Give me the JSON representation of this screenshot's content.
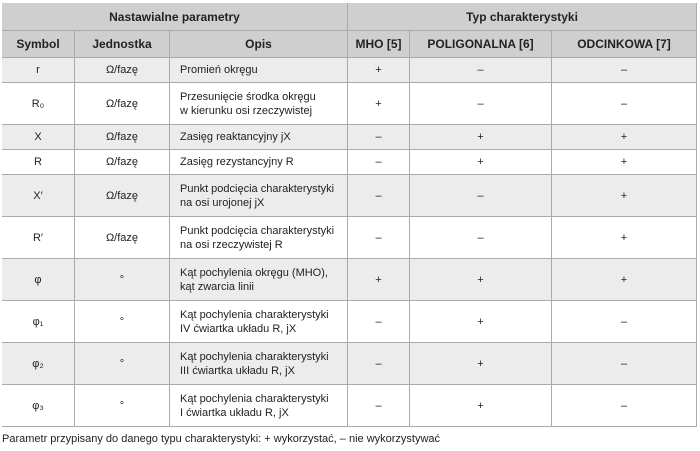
{
  "table": {
    "group_headers": [
      "Nastawialne parametry",
      "Typ charakterystyki"
    ],
    "headers": [
      "Symbol",
      "Jednostka",
      "Opis",
      "MHO [5]",
      "POLIGONALNA [6]",
      "ODCINKOWA [7]"
    ],
    "rows": [
      {
        "symbol": "r",
        "unit": "Ω/fazę",
        "description": [
          "Promień okręgu"
        ],
        "mho": "+",
        "poligonalna": "–",
        "odcinkowa": "–"
      },
      {
        "symbol": "R₀",
        "unit": "Ω/fazę",
        "description": [
          "Przesunięcie środka okręgu",
          "w kierunku osi rzeczywistej"
        ],
        "mho": "+",
        "poligonalna": "–",
        "odcinkowa": "–"
      },
      {
        "symbol": "X",
        "unit": "Ω/fazę",
        "description": [
          "Zasięg reaktancyjny jX"
        ],
        "mho": "–",
        "poligonalna": "+",
        "odcinkowa": "+"
      },
      {
        "symbol": "R",
        "unit": "Ω/fazę",
        "description": [
          "Zasięg rezystancyjny R"
        ],
        "mho": "–",
        "poligonalna": "+",
        "odcinkowa": "+"
      },
      {
        "symbol": "X′",
        "unit": "Ω/fazę",
        "description": [
          "Punkt podcięcia charakterystyki",
          "na osi urojonej jX"
        ],
        "mho": "–",
        "poligonalna": "–",
        "odcinkowa": "+"
      },
      {
        "symbol": "R′",
        "unit": "Ω/fazę",
        "description": [
          "Punkt podcięcia charakterystyki",
          "na osi rzeczywistej R"
        ],
        "mho": "–",
        "poligonalna": "–",
        "odcinkowa": "+"
      },
      {
        "symbol": "φ",
        "unit": "°",
        "description": [
          "Kąt pochylenia okręgu (MHO),",
          "kąt zwarcia linii"
        ],
        "mho": "+",
        "poligonalna": "+",
        "odcinkowa": "+"
      },
      {
        "symbol": "φ₁",
        "unit": "°",
        "description": [
          "Kąt pochylenia charakterystyki",
          "IV ćwiartka układu R, jX"
        ],
        "mho": "–",
        "poligonalna": "+",
        "odcinkowa": "–"
      },
      {
        "symbol": "φ₂",
        "unit": "°",
        "description": [
          "Kąt pochylenia charakterystyki",
          "III ćwiartka układu R, jX"
        ],
        "mho": "–",
        "poligonalna": "+",
        "odcinkowa": "–"
      },
      {
        "symbol": "φ₃",
        "unit": "°",
        "description": [
          "Kąt pochylenia charakterystyki",
          "I ćwiartka układu R, jX"
        ],
        "mho": "–",
        "poligonalna": "+",
        "odcinkowa": "–"
      }
    ]
  },
  "caption": "Parametr przypisany do danego typu charakterystyki: + wykorzystać, – nie wykorzystywać"
}
